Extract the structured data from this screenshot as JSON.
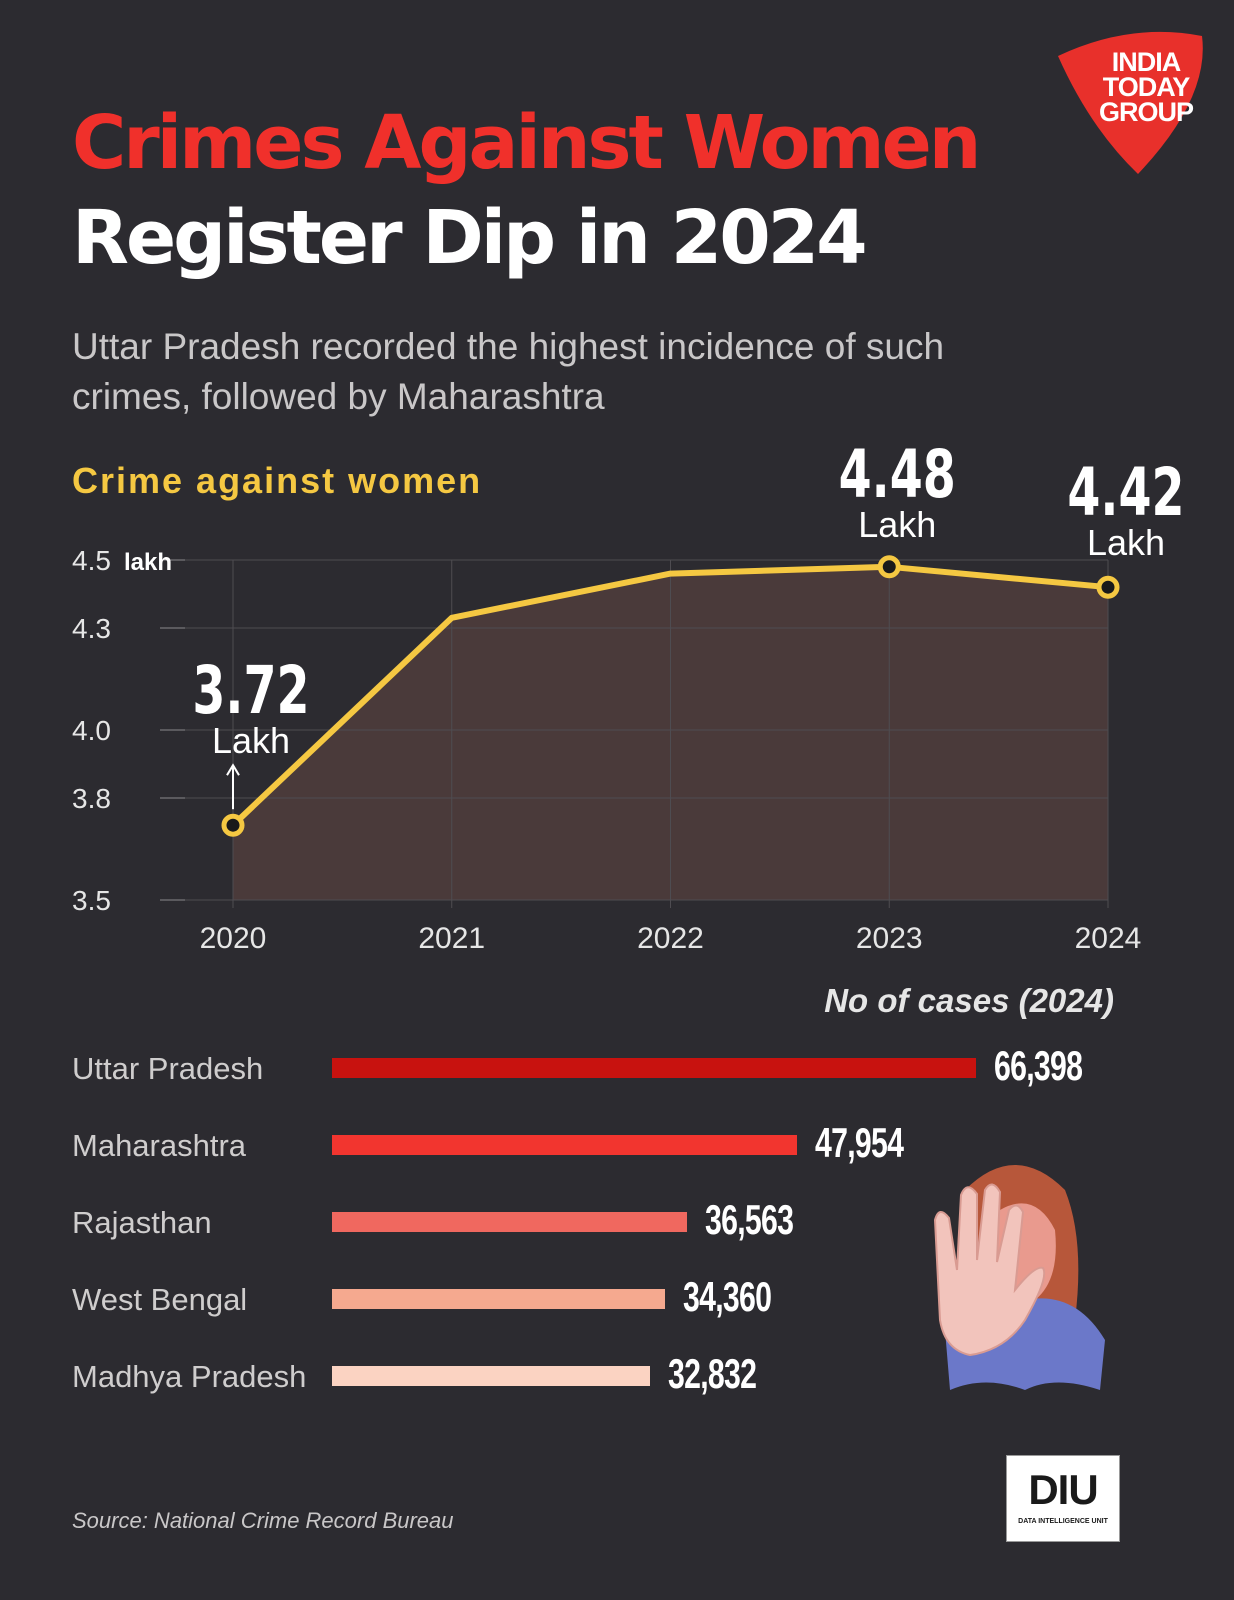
{
  "header": {
    "title_line1": "Crimes Against Women",
    "title_line2": "Register Dip in 2024",
    "subtitle": "Uttar Pradesh recorded the highest incidence of such crimes, followed by Maharashtra"
  },
  "logo": {
    "text": [
      "INDIA",
      "TODAY",
      "GROUP"
    ],
    "color": "#e8302b"
  },
  "footer": {
    "source": "Source: National Crime Record Bureau",
    "diu_logo": "DIU",
    "diu_caption": "DATA INTELLIGENCE UNIT"
  },
  "colors": {
    "background": "#2c2b30",
    "title_red": "#f0302b",
    "line": "#f5c842",
    "area": "#4a3a3a"
  },
  "chart_data": [
    {
      "type": "area",
      "title": "Crime against women",
      "x": [
        "2020",
        "2021",
        "2022",
        "2023",
        "2024"
      ],
      "y": [
        3.72,
        4.33,
        4.46,
        4.48,
        4.42
      ],
      "ylim": [
        3.5,
        4.5
      ],
      "yticks": [
        "3.5",
        "3.8",
        "4.0",
        "4.3",
        "4.5"
      ],
      "y_unit_label": "lakh",
      "grid": true,
      "annotations": [
        {
          "x": "2020",
          "value": "3.72",
          "unit": "Lakh"
        },
        {
          "x": "2023",
          "value": "4.48",
          "unit": "Lakh"
        },
        {
          "x": "2024",
          "value": "4.42",
          "unit": "Lakh"
        }
      ]
    },
    {
      "type": "bar",
      "orientation": "horizontal",
      "title": "No of cases (2024)",
      "categories": [
        "Uttar Pradesh",
        "Maharashtra",
        "Rajasthan",
        "West Bengal",
        "Madhya Pradesh"
      ],
      "values": [
        66398,
        47954,
        36563,
        34360,
        32832
      ],
      "value_labels": [
        "66,398",
        "47,954",
        "36,563",
        "34,360",
        "32,832"
      ],
      "colors": [
        "#c8120f",
        "#f2352f",
        "#f0685f",
        "#f5a98f",
        "#fbd3c2"
      ]
    }
  ]
}
